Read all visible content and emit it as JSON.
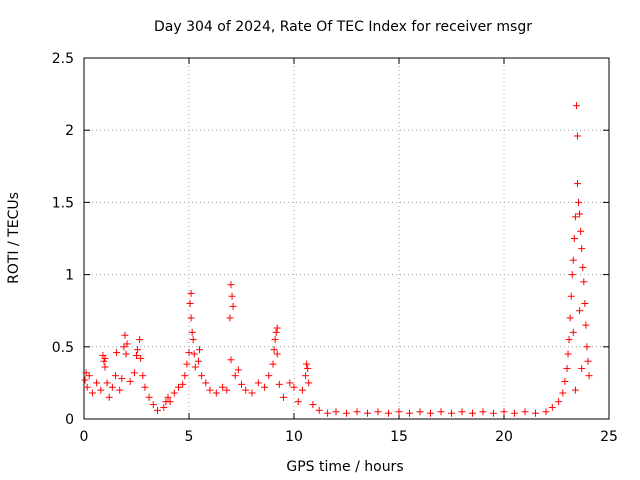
{
  "chart_data": {
    "type": "scatter",
    "title": "Day 304 of 2024, Rate Of TEC Index for receiver msgr",
    "xlabel": "GPS time / hours",
    "ylabel": "ROTI / TECUs",
    "xlim": [
      0,
      25
    ],
    "ylim": [
      0,
      2.5
    ],
    "x_ticks": [
      "0",
      "5",
      "10",
      "15",
      "20",
      "25"
    ],
    "y_ticks": [
      "0",
      "0.5",
      "1",
      "1.5",
      "2",
      "2.5"
    ],
    "grid": true,
    "marker": "+",
    "color": "#ff0000",
    "series": [
      {
        "points": [
          [
            0.05,
            0.27
          ],
          [
            0.1,
            0.32
          ],
          [
            0.15,
            0.22
          ],
          [
            0.25,
            0.3
          ],
          [
            0.4,
            0.18
          ],
          [
            0.6,
            0.25
          ],
          [
            0.8,
            0.2
          ],
          [
            0.9,
            0.44
          ],
          [
            0.95,
            0.4
          ],
          [
            1.0,
            0.42
          ],
          [
            1.0,
            0.36
          ],
          [
            1.1,
            0.25
          ],
          [
            1.2,
            0.15
          ],
          [
            1.35,
            0.22
          ],
          [
            1.5,
            0.3
          ],
          [
            1.55,
            0.46
          ],
          [
            1.7,
            0.2
          ],
          [
            1.8,
            0.28
          ],
          [
            1.9,
            0.5
          ],
          [
            1.95,
            0.58
          ],
          [
            2.0,
            0.45
          ],
          [
            2.05,
            0.52
          ],
          [
            2.2,
            0.26
          ],
          [
            2.4,
            0.32
          ],
          [
            2.5,
            0.44
          ],
          [
            2.55,
            0.48
          ],
          [
            2.65,
            0.55
          ],
          [
            2.7,
            0.42
          ],
          [
            2.8,
            0.3
          ],
          [
            2.9,
            0.22
          ],
          [
            3.1,
            0.15
          ],
          [
            3.3,
            0.1
          ],
          [
            3.5,
            0.06
          ],
          [
            3.8,
            0.08
          ],
          [
            3.9,
            0.12
          ],
          [
            4.0,
            0.15
          ],
          [
            4.1,
            0.12
          ],
          [
            4.3,
            0.18
          ],
          [
            4.5,
            0.22
          ],
          [
            4.7,
            0.24
          ],
          [
            4.8,
            0.3
          ],
          [
            4.9,
            0.38
          ],
          [
            5.0,
            0.46
          ],
          [
            5.05,
            0.8
          ],
          [
            5.1,
            0.87
          ],
          [
            5.1,
            0.7
          ],
          [
            5.15,
            0.6
          ],
          [
            5.2,
            0.55
          ],
          [
            5.25,
            0.45
          ],
          [
            5.3,
            0.36
          ],
          [
            5.45,
            0.4
          ],
          [
            5.5,
            0.48
          ],
          [
            5.6,
            0.3
          ],
          [
            5.8,
            0.25
          ],
          [
            6.0,
            0.2
          ],
          [
            6.3,
            0.18
          ],
          [
            6.6,
            0.22
          ],
          [
            6.8,
            0.2
          ],
          [
            6.95,
            0.7
          ],
          [
            7.0,
            0.93
          ],
          [
            7.05,
            0.85
          ],
          [
            7.1,
            0.78
          ],
          [
            7.0,
            0.41
          ],
          [
            7.2,
            0.3
          ],
          [
            7.35,
            0.34
          ],
          [
            7.5,
            0.24
          ],
          [
            7.7,
            0.2
          ],
          [
            8.0,
            0.18
          ],
          [
            8.3,
            0.25
          ],
          [
            8.6,
            0.22
          ],
          [
            8.8,
            0.3
          ],
          [
            9.0,
            0.38
          ],
          [
            9.05,
            0.48
          ],
          [
            9.1,
            0.55
          ],
          [
            9.15,
            0.6
          ],
          [
            9.2,
            0.63
          ],
          [
            9.2,
            0.45
          ],
          [
            9.3,
            0.24
          ],
          [
            9.5,
            0.15
          ],
          [
            9.8,
            0.25
          ],
          [
            10.0,
            0.22
          ],
          [
            10.2,
            0.12
          ],
          [
            10.4,
            0.2
          ],
          [
            10.55,
            0.3
          ],
          [
            10.6,
            0.38
          ],
          [
            10.65,
            0.35
          ],
          [
            10.7,
            0.25
          ],
          [
            10.9,
            0.1
          ],
          [
            11.2,
            0.06
          ],
          [
            11.6,
            0.04
          ],
          [
            12.0,
            0.05
          ],
          [
            12.5,
            0.04
          ],
          [
            13.0,
            0.05
          ],
          [
            13.5,
            0.04
          ],
          [
            14.0,
            0.05
          ],
          [
            14.5,
            0.04
          ],
          [
            15.0,
            0.05
          ],
          [
            15.5,
            0.04
          ],
          [
            16.0,
            0.05
          ],
          [
            16.5,
            0.04
          ],
          [
            17.0,
            0.05
          ],
          [
            17.5,
            0.04
          ],
          [
            18.0,
            0.05
          ],
          [
            18.5,
            0.04
          ],
          [
            19.0,
            0.05
          ],
          [
            19.5,
            0.04
          ],
          [
            20.0,
            0.05
          ],
          [
            20.5,
            0.04
          ],
          [
            21.0,
            0.05
          ],
          [
            21.5,
            0.04
          ],
          [
            22.0,
            0.05
          ],
          [
            22.3,
            0.08
          ],
          [
            22.6,
            0.12
          ],
          [
            22.8,
            0.18
          ],
          [
            22.9,
            0.26
          ],
          [
            23.0,
            0.35
          ],
          [
            23.05,
            0.45
          ],
          [
            23.1,
            0.55
          ],
          [
            23.15,
            0.7
          ],
          [
            23.2,
            0.85
          ],
          [
            23.25,
            1.0
          ],
          [
            23.3,
            1.1
          ],
          [
            23.35,
            1.25
          ],
          [
            23.4,
            1.4
          ],
          [
            23.45,
            2.17
          ],
          [
            23.5,
            1.96
          ],
          [
            23.5,
            1.63
          ],
          [
            23.55,
            1.5
          ],
          [
            23.6,
            1.42
          ],
          [
            23.65,
            1.3
          ],
          [
            23.7,
            1.18
          ],
          [
            23.75,
            1.05
          ],
          [
            23.8,
            0.95
          ],
          [
            23.85,
            0.8
          ],
          [
            23.9,
            0.65
          ],
          [
            23.95,
            0.5
          ],
          [
            24.0,
            0.4
          ],
          [
            24.05,
            0.3
          ],
          [
            23.3,
            0.6
          ],
          [
            23.6,
            0.75
          ],
          [
            23.4,
            0.2
          ],
          [
            23.7,
            0.35
          ]
        ]
      }
    ]
  }
}
